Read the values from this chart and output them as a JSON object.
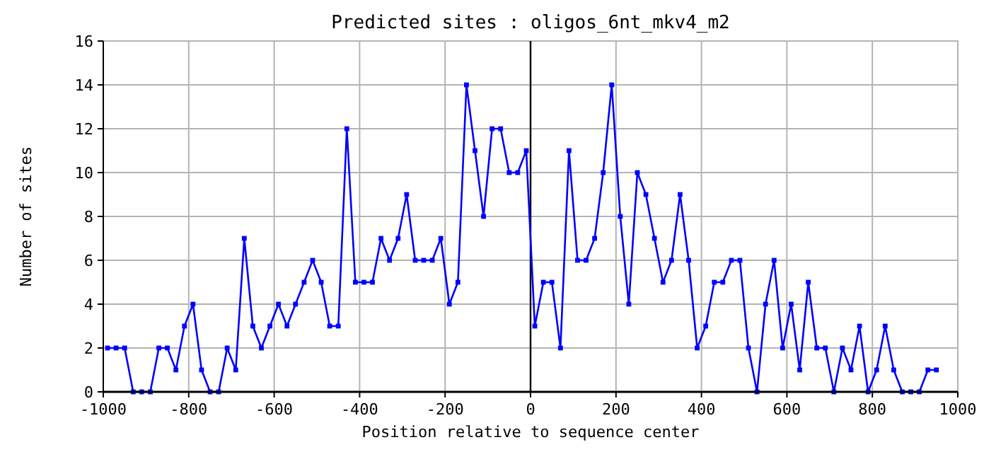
{
  "chart_data": {
    "type": "line",
    "title": "Predicted sites : oligos_6nt_mkv4_m2",
    "xlabel": "Position relative to sequence center",
    "ylabel": "Number of sites",
    "x": [
      -990,
      -970,
      -950,
      -930,
      -910,
      -890,
      -870,
      -850,
      -830,
      -810,
      -790,
      -770,
      -750,
      -730,
      -710,
      -690,
      -670,
      -650,
      -630,
      -610,
      -590,
      -570,
      -550,
      -530,
      -510,
      -490,
      -470,
      -450,
      -430,
      -410,
      -390,
      -370,
      -350,
      -330,
      -310,
      -290,
      -270,
      -250,
      -230,
      -210,
      -190,
      -170,
      -150,
      -130,
      -110,
      -90,
      -70,
      -50,
      -30,
      -10,
      10,
      30,
      50,
      70,
      90,
      110,
      130,
      150,
      170,
      190,
      210,
      230,
      250,
      270,
      290,
      310,
      330,
      350,
      370,
      390,
      410,
      430,
      450,
      470,
      490,
      510,
      530,
      550,
      570,
      590,
      610,
      630,
      650,
      670,
      690,
      710,
      730,
      750,
      770,
      790,
      810,
      830,
      850,
      870,
      890,
      910,
      930,
      950
    ],
    "series": [
      {
        "color": "#0000ff",
        "values": [
          2,
          2,
          2,
          0,
          0,
          0,
          2,
          2,
          1,
          3,
          4,
          1,
          0,
          0,
          2,
          1,
          7,
          3,
          2,
          3,
          4,
          3,
          4,
          5,
          6,
          5,
          3,
          3,
          12,
          5,
          5,
          5,
          7,
          6,
          7,
          9,
          6,
          6,
          6,
          7,
          4,
          5,
          14,
          11,
          8,
          12,
          12,
          10,
          10,
          11,
          3,
          5,
          5,
          2,
          11,
          6,
          6,
          7,
          10,
          14,
          8,
          4,
          10,
          9,
          7,
          5,
          6,
          9,
          6,
          2,
          3,
          5,
          5,
          6,
          6,
          2,
          0,
          4,
          6,
          2,
          4,
          1,
          5,
          2,
          2,
          0,
          2,
          1,
          3,
          0,
          1,
          3,
          1,
          0,
          0,
          0,
          1,
          1
        ]
      }
    ],
    "xlim": [
      -1000,
      1000
    ],
    "xticks": [
      -1000,
      -800,
      -600,
      -400,
      -200,
      0,
      200,
      400,
      600,
      800,
      1000
    ],
    "ylim": [
      0,
      16
    ],
    "yticks": [
      0,
      2,
      4,
      6,
      8,
      10,
      12,
      14,
      16
    ],
    "ref_lines": [
      {
        "axis": "x",
        "value": 0,
        "color": "#000000"
      }
    ],
    "grid": true,
    "marker": "square",
    "line_style": "solid"
  }
}
